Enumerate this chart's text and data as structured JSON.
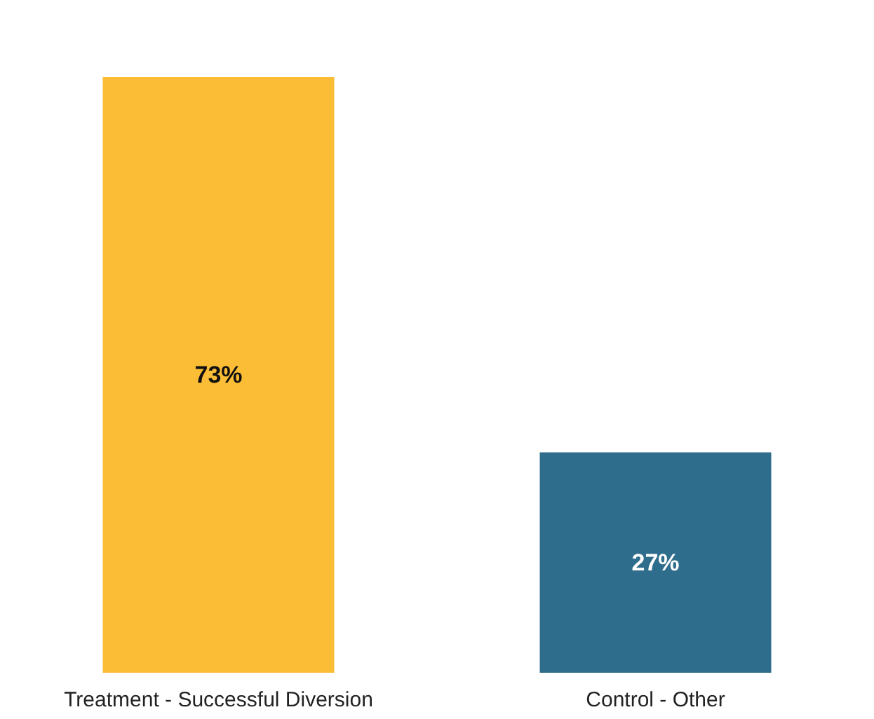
{
  "chart_data": {
    "type": "bar",
    "categories": [
      "Treatment - Successful Diversion",
      "Control - Other"
    ],
    "values": [
      73,
      27
    ],
    "colors": [
      "#fbbd35",
      "#2f6d8c"
    ],
    "value_labels": [
      "73%",
      "27%"
    ]
  }
}
